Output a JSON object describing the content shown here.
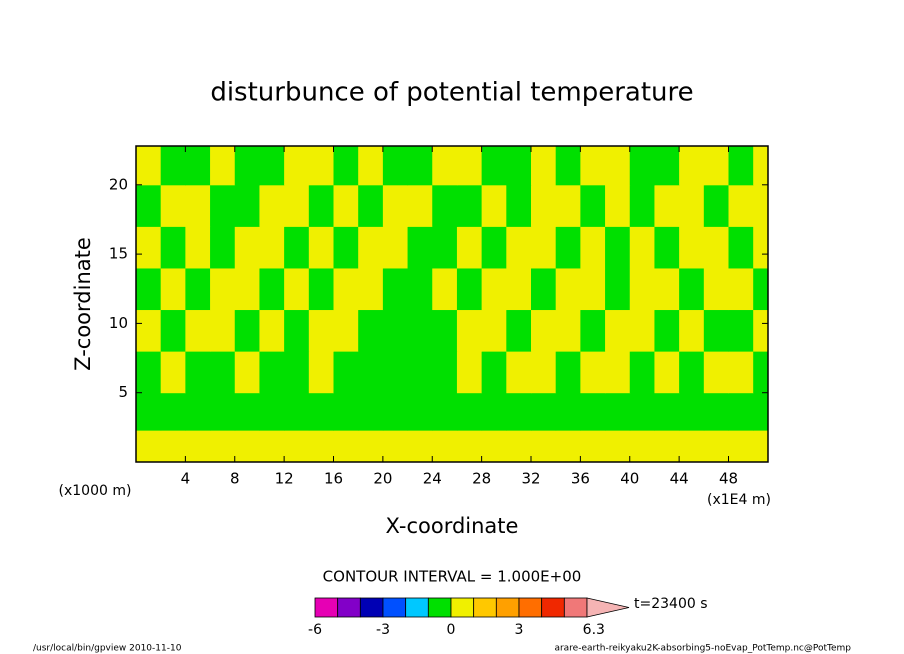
{
  "chart_data": {
    "type": "contour",
    "title": "disturbunce of potential temperature",
    "x_label": "X-coordinate",
    "y_label": "Z-coordinate",
    "x_unit_left": "(x1000 m)",
    "x_unit_right": "(x1E4 m)",
    "xlim": [
      0,
      51.2
    ],
    "ylim": [
      0,
      22.8
    ],
    "xticks": [
      4,
      8,
      12,
      16,
      20,
      24,
      28,
      32,
      36,
      40,
      44,
      48
    ],
    "yticks": [
      5,
      10,
      15,
      20
    ],
    "field": {
      "x_edges": [
        0,
        2,
        4,
        6,
        8,
        10,
        12,
        14,
        16,
        18,
        20,
        22,
        24,
        26,
        28,
        30,
        32,
        34,
        36,
        38,
        40,
        42,
        44,
        46,
        48,
        50,
        52
      ],
      "z_edges": [
        0,
        2.3,
        5,
        8,
        11,
        14,
        17,
        20,
        22.8
      ],
      "values": [
        [
          0.5,
          0.5,
          0.5,
          0.5,
          0.5,
          0.5,
          0.5,
          0.5,
          0.5,
          0.5,
          0.5,
          0.5,
          0.5,
          0.5,
          0.5,
          0.5,
          0.5,
          0.5,
          0.5,
          0.5,
          0.5,
          0.5,
          0.5,
          0.5,
          0.5,
          0.5
        ],
        [
          -0.5,
          -0.5,
          -0.5,
          -0.5,
          -0.5,
          -0.5,
          -0.5,
          -0.5,
          -0.5,
          -0.5,
          -0.5,
          -0.5,
          -0.5,
          -0.5,
          -0.5,
          -0.5,
          -0.5,
          -0.5,
          -0.5,
          -0.5,
          -0.5,
          -0.5,
          -0.5,
          -0.5,
          -0.5,
          -0.5
        ],
        [
          -0.5,
          0.5,
          -0.5,
          -0.5,
          0.5,
          -0.5,
          -0.5,
          0.5,
          -0.5,
          -0.5,
          -0.5,
          -0.5,
          -0.5,
          0.5,
          -0.5,
          0.5,
          0.5,
          -0.5,
          0.5,
          0.5,
          -0.5,
          0.5,
          -0.5,
          0.5,
          0.5,
          -0.5
        ],
        [
          0.5,
          -0.5,
          0.5,
          0.5,
          -0.5,
          0.5,
          -0.5,
          0.5,
          0.5,
          -0.5,
          -0.5,
          -0.5,
          -0.5,
          0.5,
          0.5,
          -0.5,
          0.5,
          0.5,
          -0.5,
          0.5,
          0.5,
          -0.5,
          0.5,
          -0.5,
          -0.5,
          0.5
        ],
        [
          -0.5,
          0.5,
          -0.5,
          0.5,
          0.5,
          -0.5,
          0.5,
          -0.5,
          0.5,
          0.5,
          -0.5,
          -0.5,
          0.5,
          -0.5,
          0.5,
          0.5,
          -0.5,
          0.5,
          0.5,
          -0.5,
          0.5,
          0.5,
          -0.5,
          0.5,
          0.5,
          -0.5
        ],
        [
          0.5,
          -0.5,
          0.5,
          -0.5,
          0.5,
          0.5,
          -0.5,
          0.5,
          -0.5,
          0.5,
          0.5,
          -0.5,
          -0.5,
          0.5,
          -0.5,
          0.5,
          0.5,
          -0.5,
          0.5,
          -0.5,
          0.5,
          -0.5,
          0.5,
          0.5,
          -0.5,
          0.5
        ],
        [
          -0.5,
          0.5,
          0.5,
          -0.5,
          -0.5,
          0.5,
          0.5,
          -0.5,
          0.5,
          -0.5,
          0.5,
          0.5,
          -0.5,
          -0.5,
          0.5,
          -0.5,
          0.5,
          0.5,
          -0.5,
          0.5,
          -0.5,
          0.5,
          0.5,
          -0.5,
          0.5,
          0.5
        ],
        [
          0.5,
          -0.5,
          -0.5,
          0.5,
          -0.5,
          -0.5,
          0.5,
          0.5,
          -0.5,
          0.5,
          -0.5,
          -0.5,
          0.5,
          0.5,
          -0.5,
          -0.5,
          0.5,
          -0.5,
          0.5,
          0.5,
          -0.5,
          -0.5,
          0.5,
          0.5,
          -0.5,
          0.5
        ]
      ]
    },
    "colorbar": {
      "title": "CONTOUR INTERVAL = 1.000E+00",
      "levels": [
        -6,
        -5,
        -4,
        -3,
        -2,
        -1,
        0,
        1,
        2,
        3,
        4,
        5,
        6
      ],
      "colors": [
        "#e600b4",
        "#8200c8",
        "#0000b4",
        "#0050ff",
        "#00c8ff",
        "#00e000",
        "#f0f000",
        "#ffc800",
        "#ffa000",
        "#ff6e00",
        "#f02800",
        "#f07878",
        "#f5b4b4"
      ],
      "ticks": [
        -6,
        -3,
        0,
        3,
        6.3
      ],
      "time_label": "t=23400 s"
    },
    "footer_left": "/usr/local/bin/gpview  2010-11-10",
    "footer_right": "arare-earth-reikyaku2K-absorbing5-noEvap_PotTemp.nc@PotTemp"
  }
}
